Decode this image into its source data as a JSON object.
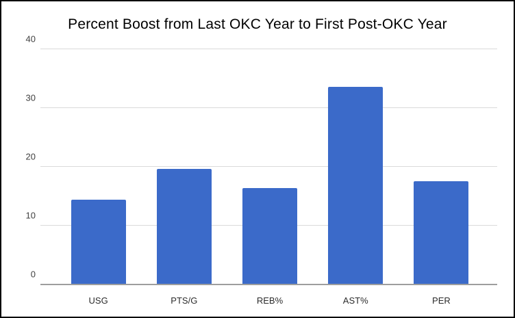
{
  "title": "Percent Boost from Last OKC Year to First Post-OKC Year",
  "colors": {
    "bar": "#3B6AC9",
    "gridline": "#dadada",
    "baseline": "#9e9e9e",
    "axis_text": "#404040",
    "category_text": "#2b2b2b",
    "title_text": "#000000",
    "background": "#ffffff",
    "border": "#000000"
  },
  "chart_data": {
    "type": "bar",
    "categories": [
      "USG",
      "PTS/G",
      "REB%",
      "AST%",
      "PER"
    ],
    "values": [
      14.4,
      19.7,
      16.4,
      33.6,
      17.6
    ],
    "title": "Percent Boost from Last OKC Year to First Post-OKC Year",
    "xlabel": "",
    "ylabel": "",
    "ylim": [
      0,
      40
    ],
    "yticks": [
      0,
      10,
      20,
      30,
      40
    ],
    "grid": true,
    "legend": "none",
    "bar_color": "#3B6AC9"
  }
}
